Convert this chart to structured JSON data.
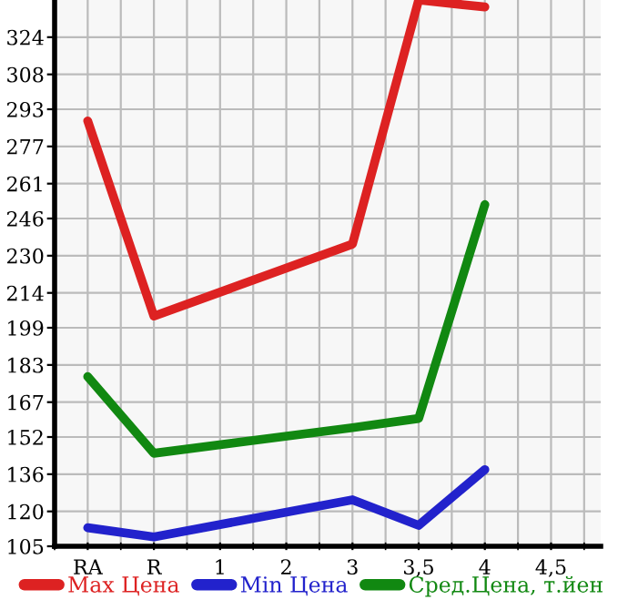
{
  "chart_data": {
    "type": "line",
    "categories": [
      "RA",
      "R",
      "1",
      "2",
      "3",
      "3,5",
      "4",
      "4,5"
    ],
    "series": [
      {
        "name": "Max Цена",
        "color": "#dd2222",
        "values": [
          288,
          204,
          null,
          null,
          235,
          340,
          337,
          null
        ]
      },
      {
        "name": "Min Цена",
        "color": "#2222cc",
        "values": [
          113,
          109,
          null,
          null,
          125,
          114,
          138,
          null
        ]
      },
      {
        "name": "Сред.Цена, т.йен",
        "color": "#118811",
        "values": [
          178,
          145,
          null,
          null,
          156,
          160,
          252,
          null
        ]
      }
    ],
    "ylim": [
      105,
      340
    ],
    "yticks": [
      105,
      120,
      136,
      152,
      167,
      183,
      199,
      214,
      230,
      246,
      261,
      277,
      293,
      308,
      324
    ],
    "grid": true,
    "legend": "bottom",
    "marker": "none",
    "line_style": "solid"
  }
}
